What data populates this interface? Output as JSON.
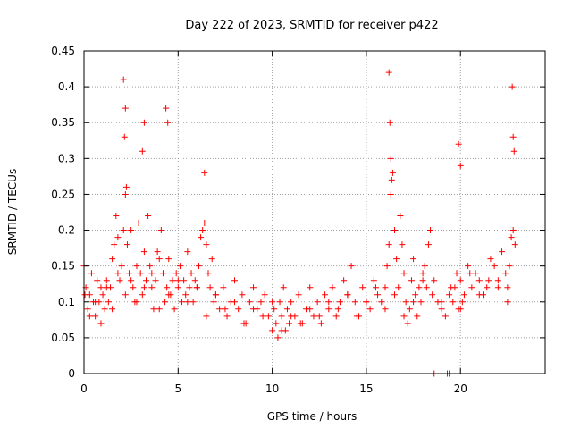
{
  "chart_data": {
    "type": "scatter",
    "title": "Day 222 of 2023, SRMTID for receiver p422",
    "xlabel": "GPS time / hours",
    "ylabel": "SRMTID / TECUs",
    "xlim": [
      0,
      24.5
    ],
    "ylim": [
      0,
      0.45
    ],
    "xticks": [
      0,
      5,
      10,
      15,
      20
    ],
    "yticks": [
      0,
      0.05,
      0.1,
      0.15,
      0.2,
      0.25,
      0.3,
      0.35,
      0.4,
      0.45
    ],
    "xtick_labels": [
      "0",
      "5",
      "10",
      "15",
      "20"
    ],
    "ytick_labels": [
      "0",
      "0.05",
      "0.1",
      "0.15",
      "0.2",
      "0.25",
      "0.3",
      "0.35",
      "0.4",
      "0.45"
    ],
    "grid": true,
    "marker": "+",
    "marker_color": "#ff0000",
    "series": [
      {
        "name": "p422",
        "x": [
          0.0,
          0.1,
          0.2,
          0.3,
          0.4,
          0.5,
          0.6,
          0.7,
          0.8,
          0.9,
          1.0,
          1.1,
          1.2,
          1.3,
          1.4,
          1.5,
          1.6,
          1.7,
          1.8,
          1.9,
          2.0,
          2.1,
          2.2,
          2.3,
          2.4,
          2.5,
          2.6,
          2.7,
          2.8,
          2.9,
          3.0,
          3.1,
          3.2,
          3.3,
          3.4,
          3.5,
          3.6,
          3.7,
          3.8,
          3.9,
          4.0,
          4.1,
          4.2,
          4.3,
          4.4,
          4.5,
          4.6,
          4.7,
          4.8,
          4.9,
          5.0,
          5.1,
          5.2,
          5.3,
          5.4,
          5.5,
          5.6,
          5.7,
          5.8,
          5.9,
          6.0,
          6.1,
          6.2,
          6.3,
          6.4,
          6.5,
          6.6,
          6.7,
          6.8,
          6.9,
          7.0,
          7.2,
          7.4,
          7.6,
          7.8,
          8.0,
          8.2,
          8.4,
          8.6,
          8.8,
          9.0,
          9.2,
          9.4,
          9.6,
          9.8,
          10.0,
          10.1,
          10.2,
          10.3,
          10.4,
          10.5,
          10.6,
          10.7,
          10.8,
          10.9,
          11.0,
          11.2,
          11.4,
          11.6,
          11.8,
          12.0,
          12.2,
          12.4,
          12.6,
          12.8,
          13.0,
          13.2,
          13.4,
          13.6,
          13.8,
          14.0,
          14.2,
          14.4,
          14.6,
          14.8,
          15.0,
          15.2,
          15.4,
          15.6,
          15.8,
          16.0,
          16.1,
          16.2,
          16.3,
          16.4,
          16.5,
          16.6,
          16.7,
          16.8,
          16.9,
          17.0,
          17.1,
          17.2,
          17.3,
          17.4,
          17.5,
          17.6,
          17.7,
          17.8,
          17.9,
          18.0,
          18.1,
          18.2,
          18.3,
          18.4,
          18.6,
          18.8,
          19.0,
          19.2,
          19.4,
          19.6,
          19.7,
          19.8,
          19.9,
          20.0,
          20.1,
          20.2,
          20.4,
          20.6,
          20.8,
          21.0,
          21.2,
          21.4,
          21.6,
          21.8,
          22.0,
          22.2,
          22.4,
          22.5,
          22.6,
          22.7,
          22.8,
          22.9,
          0.05,
          0.3,
          0.6,
          0.9,
          1.2,
          1.5,
          1.8,
          2.2,
          2.5,
          2.8,
          3.2,
          3.6,
          4.0,
          4.5,
          5.0,
          5.5,
          6.0,
          6.5,
          7.0,
          7.5,
          8.0,
          8.5,
          9.0,
          9.5,
          10.0,
          10.5,
          11.0,
          11.5,
          12.0,
          12.5,
          13.0,
          13.5,
          14.0,
          14.5,
          15.0,
          15.5,
          16.0,
          16.5,
          17.0,
          17.5,
          18.0,
          18.5,
          19.0,
          19.5,
          20.0,
          20.5,
          21.0,
          21.5,
          22.0,
          22.5,
          2.1,
          2.15,
          2.2,
          2.25,
          3.1,
          3.2,
          4.35,
          4.45,
          6.4,
          16.2,
          16.25,
          16.3,
          16.35,
          19.9,
          20.0,
          22.75,
          22.8,
          22.85,
          18.6,
          19.3,
          19.4
        ],
        "y": [
          0.15,
          0.12,
          0.09,
          0.11,
          0.14,
          0.1,
          0.08,
          0.13,
          0.1,
          0.12,
          0.11,
          0.09,
          0.13,
          0.1,
          0.12,
          0.16,
          0.18,
          0.22,
          0.19,
          0.13,
          0.15,
          0.2,
          0.25,
          0.18,
          0.14,
          0.2,
          0.12,
          0.1,
          0.15,
          0.21,
          0.14,
          0.11,
          0.17,
          0.13,
          0.22,
          0.15,
          0.12,
          0.09,
          0.13,
          0.17,
          0.16,
          0.2,
          0.14,
          0.1,
          0.12,
          0.16,
          0.11,
          0.13,
          0.09,
          0.14,
          0.12,
          0.15,
          0.1,
          0.13,
          0.11,
          0.17,
          0.12,
          0.14,
          0.1,
          0.13,
          0.12,
          0.15,
          0.19,
          0.2,
          0.21,
          0.18,
          0.14,
          0.12,
          0.16,
          0.1,
          0.11,
          0.09,
          0.12,
          0.08,
          0.1,
          0.13,
          0.09,
          0.11,
          0.07,
          0.1,
          0.12,
          0.09,
          0.1,
          0.11,
          0.08,
          0.06,
          0.09,
          0.07,
          0.05,
          0.1,
          0.08,
          0.12,
          0.06,
          0.09,
          0.07,
          0.1,
          0.08,
          0.11,
          0.07,
          0.09,
          0.12,
          0.08,
          0.1,
          0.07,
          0.11,
          0.09,
          0.12,
          0.08,
          0.1,
          0.13,
          0.11,
          0.15,
          0.1,
          0.08,
          0.12,
          0.1,
          0.09,
          0.13,
          0.11,
          0.1,
          0.12,
          0.15,
          0.18,
          0.25,
          0.28,
          0.2,
          0.16,
          0.12,
          0.22,
          0.18,
          0.14,
          0.1,
          0.07,
          0.09,
          0.13,
          0.16,
          0.11,
          0.08,
          0.12,
          0.1,
          0.14,
          0.15,
          0.12,
          0.18,
          0.2,
          0.13,
          0.1,
          0.09,
          0.08,
          0.11,
          0.1,
          0.12,
          0.14,
          0.09,
          0.13,
          0.1,
          0.11,
          0.15,
          0.12,
          0.14,
          0.13,
          0.11,
          0.12,
          0.16,
          0.15,
          0.13,
          0.17,
          0.14,
          0.12,
          0.15,
          0.19,
          0.2,
          0.18,
          0.11,
          0.08,
          0.1,
          0.07,
          0.12,
          0.09,
          0.14,
          0.11,
          0.13,
          0.1,
          0.12,
          0.14,
          0.09,
          0.11,
          0.13,
          0.1,
          0.12,
          0.08,
          0.11,
          0.09,
          0.1,
          0.07,
          0.09,
          0.08,
          0.1,
          0.06,
          0.08,
          0.07,
          0.09,
          0.08,
          0.1,
          0.09,
          0.11,
          0.08,
          0.1,
          0.12,
          0.09,
          0.11,
          0.08,
          0.1,
          0.13,
          0.11,
          0.1,
          0.12,
          0.09,
          0.14,
          0.11,
          0.13,
          0.12,
          0.1,
          0.41,
          0.33,
          0.37,
          0.26,
          0.31,
          0.35,
          0.37,
          0.35,
          0.28,
          0.42,
          0.35,
          0.3,
          0.27,
          0.32,
          0.29,
          0.4,
          0.33,
          0.31,
          0.0,
          0.0,
          0.0
        ]
      }
    ]
  }
}
